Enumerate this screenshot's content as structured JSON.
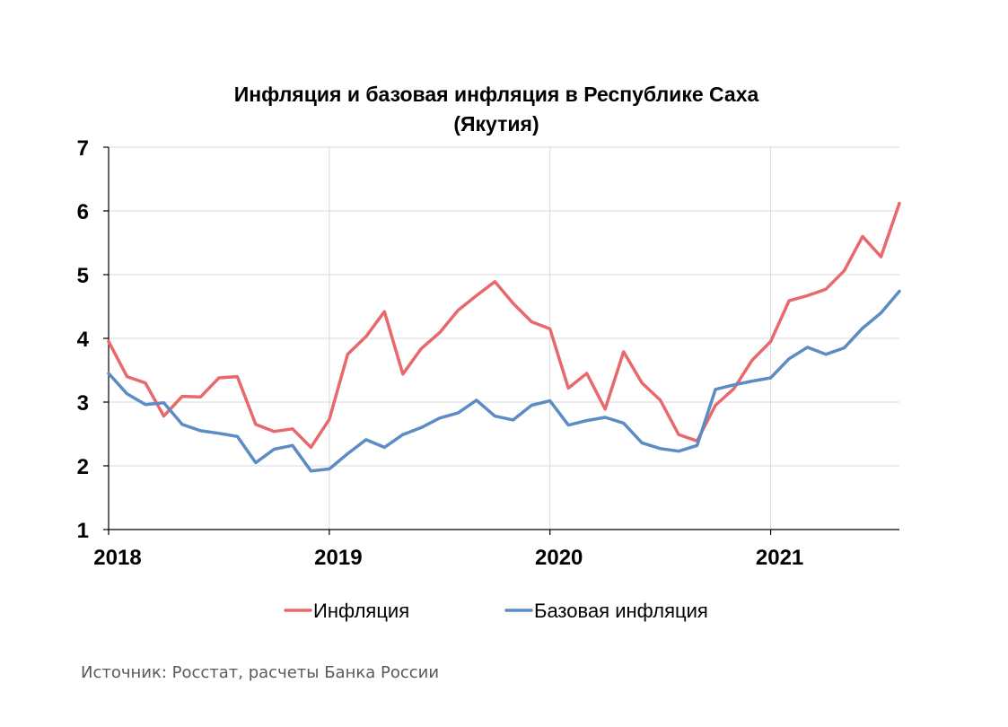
{
  "chart_data": {
    "type": "line",
    "title_lines": [
      "Инфляция и базовая инфляция в Республике Саха",
      "(Якутия)"
    ],
    "xlabel": "",
    "ylabel": "",
    "ylim": [
      1,
      7
    ],
    "yticks": [
      1,
      2,
      3,
      4,
      5,
      6,
      7
    ],
    "x_tick_labels": [
      "2018",
      "2019",
      "2020",
      "2021"
    ],
    "x_range_months": [
      0,
      43
    ],
    "grid": true,
    "legend_position": "bottom",
    "source": "Источник: Росстат, расчеты Банка России",
    "series": [
      {
        "name": "Инфляция",
        "color": "#e8696b",
        "values": [
          3.95,
          3.4,
          3.3,
          2.78,
          3.09,
          3.08,
          3.38,
          3.4,
          2.65,
          2.54,
          2.58,
          2.29,
          2.73,
          3.75,
          4.03,
          4.42,
          3.44,
          3.84,
          4.09,
          4.44,
          4.67,
          4.89,
          4.55,
          4.26,
          4.15,
          3.22,
          3.45,
          2.89,
          3.79,
          3.3,
          3.03,
          2.49,
          2.39,
          2.95,
          3.21,
          3.66,
          3.95,
          4.59,
          4.67,
          4.77,
          5.06,
          5.6,
          5.28,
          6.12
        ]
      },
      {
        "name": "Базовая инфляция",
        "color": "#5b8cc4",
        "values": [
          3.45,
          3.13,
          2.96,
          2.99,
          2.65,
          2.55,
          2.51,
          2.46,
          2.05,
          2.26,
          2.32,
          1.92,
          1.95,
          2.19,
          2.41,
          2.29,
          2.49,
          2.6,
          2.75,
          2.83,
          3.03,
          2.78,
          2.72,
          2.95,
          3.02,
          2.64,
          2.71,
          2.76,
          2.67,
          2.36,
          2.27,
          2.23,
          2.32,
          3.2,
          3.27,
          3.33,
          3.38,
          3.68,
          3.86,
          3.75,
          3.85,
          4.16,
          4.4,
          4.74
        ]
      }
    ]
  }
}
